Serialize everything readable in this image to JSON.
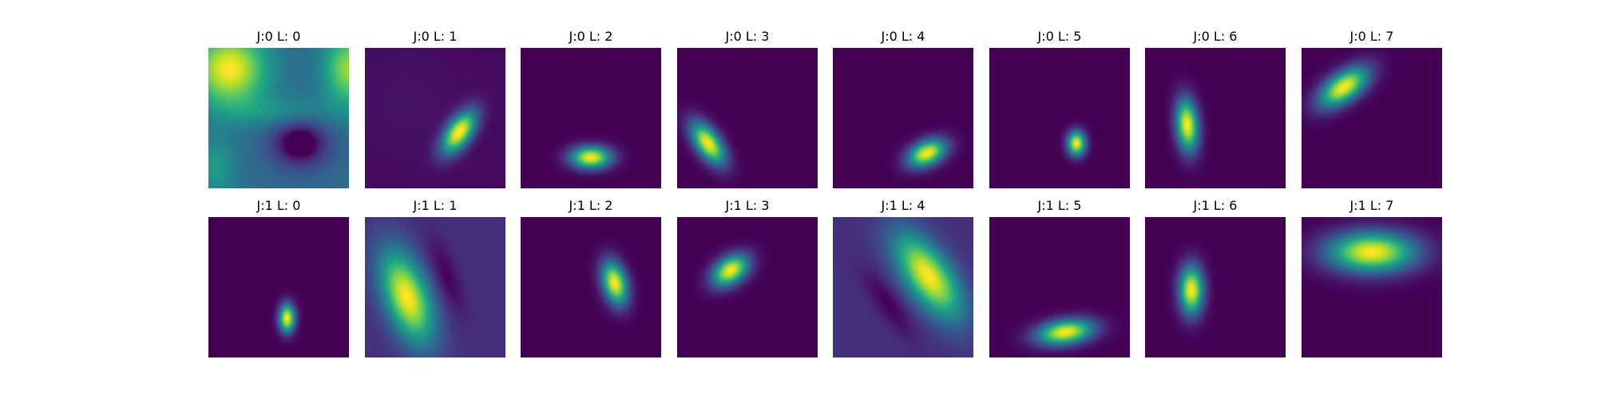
{
  "chart_data": [
    {
      "type": "heatmap",
      "title": "J:0 L: 0",
      "background": 0.35,
      "features": [
        {
          "kind": "blob",
          "x": 0.15,
          "y": 0.15,
          "sx": 0.18,
          "sy": 0.18,
          "angle": 0,
          "amp": 0.65
        },
        {
          "kind": "blob",
          "x": 1.0,
          "y": 0.15,
          "sx": 0.12,
          "sy": 0.18,
          "angle": 0,
          "amp": 0.5
        },
        {
          "kind": "blob",
          "x": 0.05,
          "y": 0.85,
          "sx": 0.1,
          "sy": 0.15,
          "angle": 0,
          "amp": 0.2
        },
        {
          "kind": "blob",
          "x": 0.5,
          "y": 0.45,
          "sx": 0.3,
          "sy": 0.08,
          "angle": 0,
          "amp": 0.15
        },
        {
          "kind": "blob",
          "x": 0.65,
          "y": 0.68,
          "sx": 0.14,
          "sy": 0.12,
          "angle": 0,
          "amp": -0.4
        },
        {
          "kind": "blob",
          "x": 0.65,
          "y": 0.68,
          "sx": 0.06,
          "sy": 0.05,
          "angle": 0,
          "amp": -0.2
        }
      ]
    },
    {
      "type": "heatmap",
      "title": "J:0 L: 1",
      "background": 0.02,
      "features": [
        {
          "kind": "blob",
          "x": 0.67,
          "y": 0.6,
          "sx": 0.06,
          "sy": 0.12,
          "angle": 35,
          "amp": 1.0
        },
        {
          "kind": "blob",
          "x": 0.3,
          "y": 0.4,
          "sx": 0.35,
          "sy": 0.35,
          "angle": 0,
          "amp": 0.03
        }
      ]
    },
    {
      "type": "heatmap",
      "title": "J:0 L: 2",
      "background": 0.0,
      "features": [
        {
          "kind": "blob",
          "x": 0.5,
          "y": 0.78,
          "sx": 0.1,
          "sy": 0.055,
          "angle": 0,
          "amp": 1.0
        }
      ]
    },
    {
      "type": "heatmap",
      "title": "J:0 L: 3",
      "background": 0.0,
      "features": [
        {
          "kind": "blob",
          "x": 0.22,
          "y": 0.68,
          "sx": 0.06,
          "sy": 0.12,
          "angle": -35,
          "amp": 1.0
        }
      ]
    },
    {
      "type": "heatmap",
      "title": "J:0 L: 4",
      "background": 0.0,
      "features": [
        {
          "kind": "blob",
          "x": 0.67,
          "y": 0.75,
          "sx": 0.1,
          "sy": 0.06,
          "angle": -25,
          "amp": 1.0
        }
      ]
    },
    {
      "type": "heatmap",
      "title": "J:0 L: 5",
      "background": 0.0,
      "features": [
        {
          "kind": "blob",
          "x": 0.62,
          "y": 0.68,
          "sx": 0.045,
          "sy": 0.06,
          "angle": 0,
          "amp": 1.0
        }
      ]
    },
    {
      "type": "heatmap",
      "title": "J:0 L: 6",
      "background": 0.0,
      "features": [
        {
          "kind": "blob",
          "x": 0.3,
          "y": 0.55,
          "sx": 0.055,
          "sy": 0.13,
          "angle": -5,
          "amp": 1.0
        }
      ]
    },
    {
      "type": "heatmap",
      "title": "J:0 L: 7",
      "background": 0.0,
      "features": [
        {
          "kind": "blob",
          "x": 0.3,
          "y": 0.28,
          "sx": 0.14,
          "sy": 0.07,
          "angle": -35,
          "amp": 1.0
        }
      ]
    },
    {
      "type": "heatmap",
      "title": "J:1 L: 0",
      "background": 0.0,
      "features": [
        {
          "kind": "blob",
          "x": 0.56,
          "y": 0.72,
          "sx": 0.04,
          "sy": 0.07,
          "angle": 0,
          "amp": 1.0
        }
      ]
    },
    {
      "type": "heatmap",
      "title": "J:1 L: 1",
      "background": 0.14,
      "features": [
        {
          "kind": "blob",
          "x": 0.3,
          "y": 0.57,
          "sx": 0.11,
          "sy": 0.24,
          "angle": -20,
          "amp": 0.86
        },
        {
          "kind": "blob",
          "x": 0.58,
          "y": 0.42,
          "sx": 0.06,
          "sy": 0.2,
          "angle": -20,
          "amp": -0.14
        }
      ]
    },
    {
      "type": "heatmap",
      "title": "J:1 L: 2",
      "background": 0.0,
      "features": [
        {
          "kind": "blob",
          "x": 0.67,
          "y": 0.47,
          "sx": 0.06,
          "sy": 0.11,
          "angle": -15,
          "amp": 1.0
        }
      ]
    },
    {
      "type": "heatmap",
      "title": "J:1 L: 3",
      "background": 0.0,
      "features": [
        {
          "kind": "blob",
          "x": 0.38,
          "y": 0.38,
          "sx": 0.1,
          "sy": 0.065,
          "angle": -35,
          "amp": 1.0
        }
      ]
    },
    {
      "type": "heatmap",
      "title": "J:1 L: 4",
      "background": 0.14,
      "features": [
        {
          "kind": "blob",
          "x": 0.68,
          "y": 0.42,
          "sx": 0.11,
          "sy": 0.24,
          "angle": -35,
          "amp": 0.86
        },
        {
          "kind": "blob",
          "x": 0.4,
          "y": 0.62,
          "sx": 0.06,
          "sy": 0.2,
          "angle": -35,
          "amp": -0.14
        }
      ]
    },
    {
      "type": "heatmap",
      "title": "J:1 L: 5",
      "background": 0.0,
      "features": [
        {
          "kind": "blob",
          "x": 0.54,
          "y": 0.82,
          "sx": 0.14,
          "sy": 0.06,
          "angle": -8,
          "amp": 1.0
        }
      ]
    },
    {
      "type": "heatmap",
      "title": "J:1 L: 6",
      "background": 0.0,
      "features": [
        {
          "kind": "blob",
          "x": 0.33,
          "y": 0.52,
          "sx": 0.06,
          "sy": 0.12,
          "angle": 0,
          "amp": 1.0
        }
      ]
    },
    {
      "type": "heatmap",
      "title": "J:1 L: 7",
      "background": 0.0,
      "features": [
        {
          "kind": "blob",
          "x": 0.5,
          "y": 0.25,
          "sx": 0.22,
          "sy": 0.1,
          "angle": 0,
          "amp": 1.0
        }
      ]
    }
  ]
}
